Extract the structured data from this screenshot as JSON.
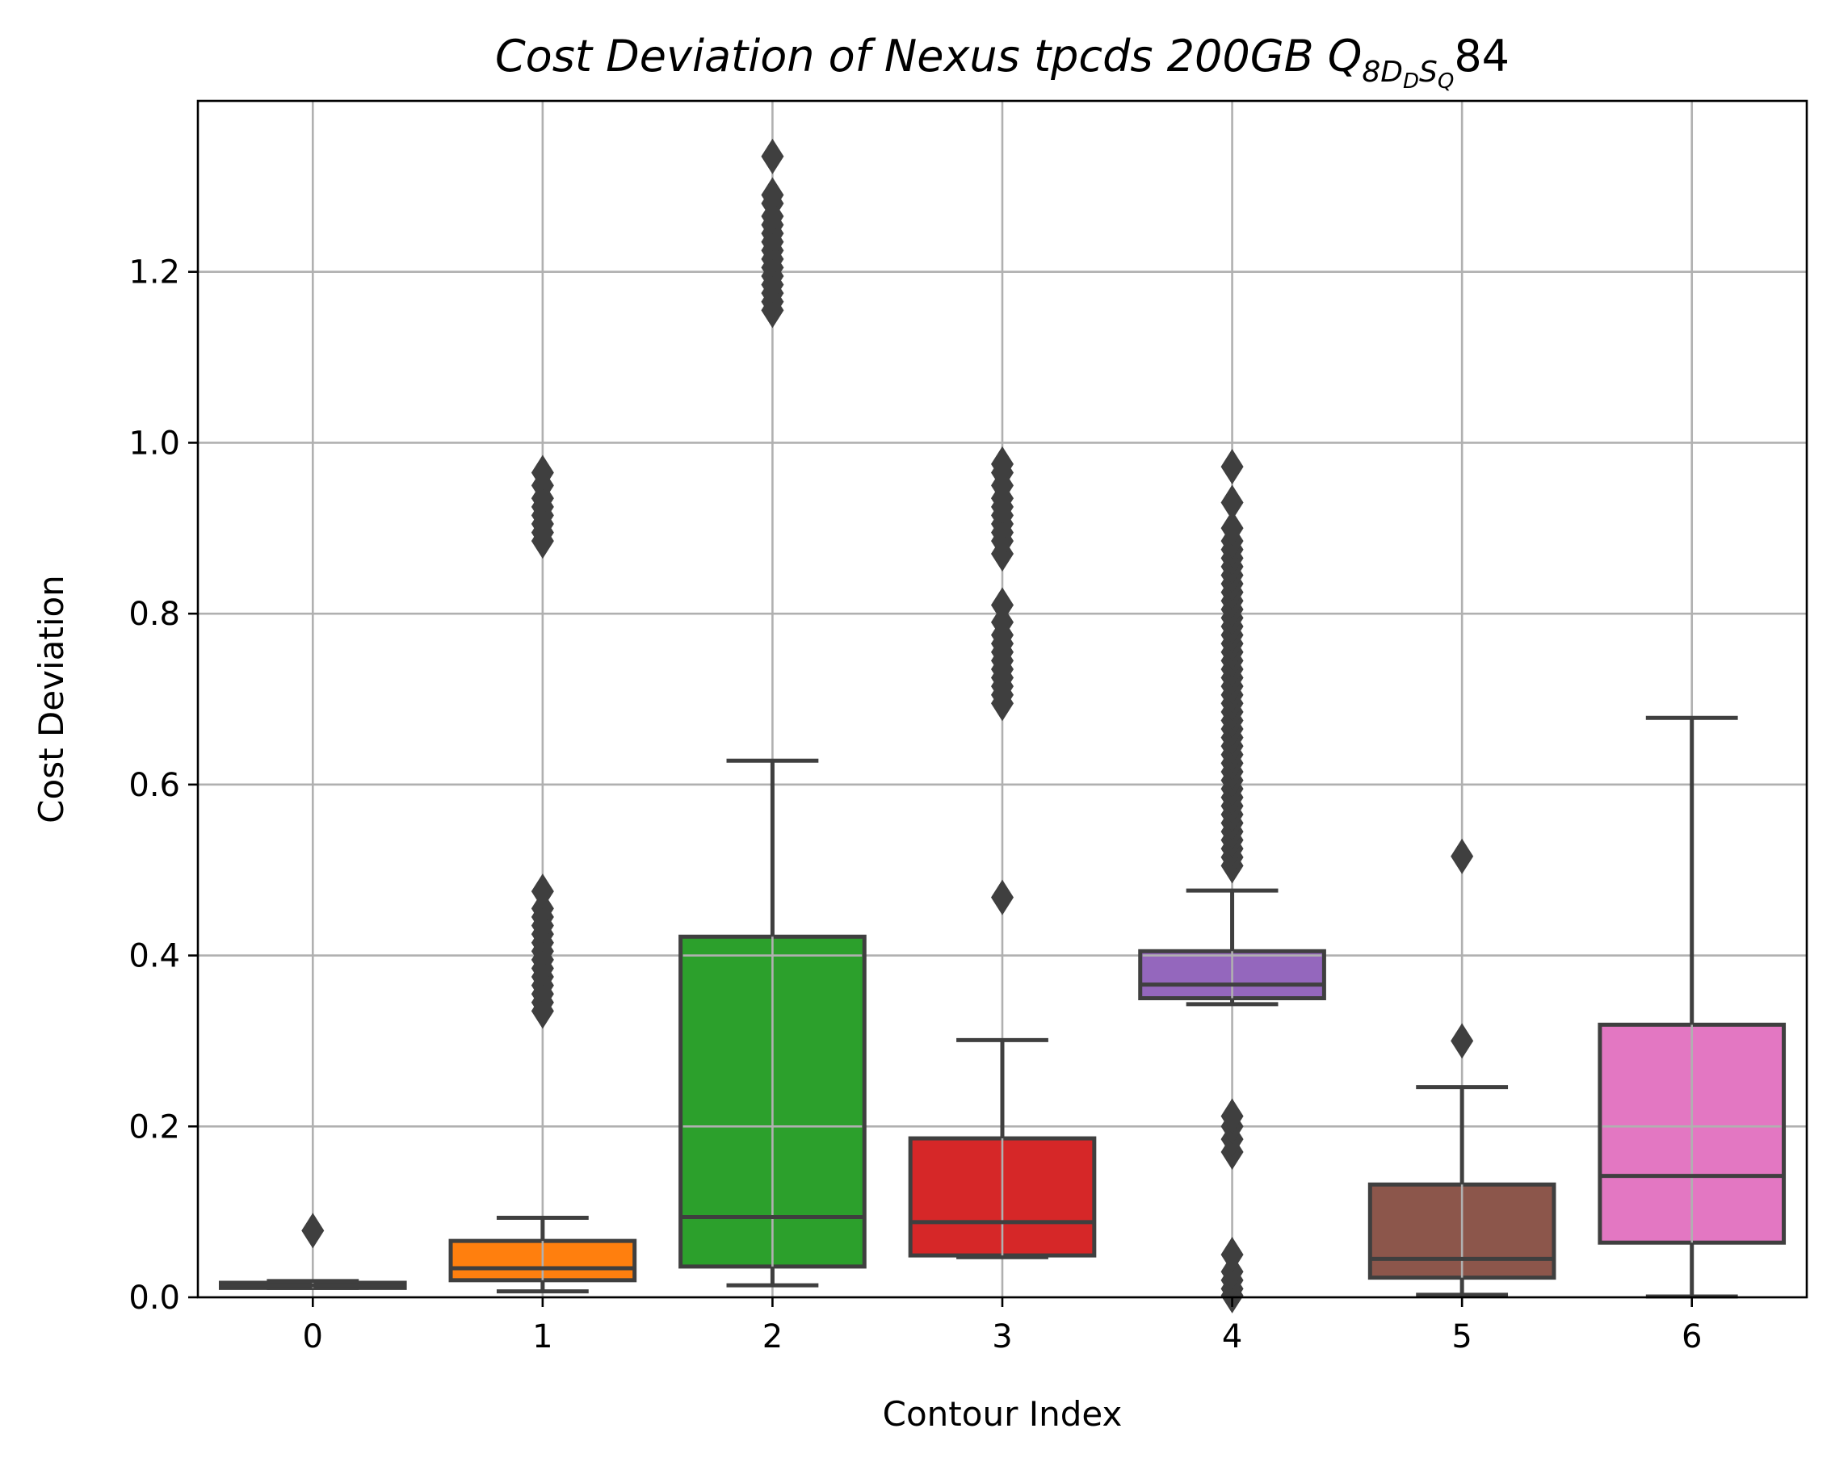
{
  "chart_data": {
    "type": "box",
    "title": {
      "main": "Cost Deviation of Nexus tpcds  200GB  ",
      "q": "Q",
      "sub_8": "8",
      "sub_D": "D",
      "subsub_D": "D",
      "sub_S": "S",
      "subsub_Q": "Q",
      "suffix": "84"
    },
    "xlabel": "Contour Index",
    "ylabel": "Cost Deviation",
    "ylim": [
      0,
      1.4
    ],
    "y_ticks": [
      "0.0",
      "0.2",
      "0.4",
      "0.6",
      "0.8",
      "1.0",
      "1.2"
    ],
    "grid": true,
    "categories": [
      "0",
      "1",
      "2",
      "3",
      "4",
      "5",
      "6"
    ],
    "boxes": [
      {
        "category": "0",
        "color": "#1f77b4",
        "whislo": 0.011,
        "q1": 0.011,
        "med": 0.014,
        "q3": 0.017,
        "whishi": 0.019,
        "fliers": [
          0.078
        ]
      },
      {
        "category": "1",
        "color": "#ff7f0e",
        "whislo": 0.007,
        "q1": 0.02,
        "med": 0.034,
        "q3": 0.066,
        "whishi": 0.093,
        "fliers": [
          0.335,
          0.345,
          0.355,
          0.365,
          0.375,
          0.385,
          0.395,
          0.405,
          0.415,
          0.425,
          0.435,
          0.445,
          0.455,
          0.475,
          0.885,
          0.895,
          0.905,
          0.915,
          0.925,
          0.935,
          0.95,
          0.965
        ]
      },
      {
        "category": "2",
        "color": "#2ca02c",
        "whislo": 0.014,
        "q1": 0.036,
        "med": 0.094,
        "q3": 0.422,
        "whishi": 0.628,
        "fliers": [
          1.155,
          1.165,
          1.175,
          1.185,
          1.195,
          1.205,
          1.215,
          1.225,
          1.235,
          1.245,
          1.255,
          1.265,
          1.28,
          1.29,
          1.335
        ]
      },
      {
        "category": "3",
        "color": "#d62728",
        "whislo": 0.047,
        "q1": 0.049,
        "med": 0.088,
        "q3": 0.186,
        "whishi": 0.301,
        "fliers": [
          0.468,
          0.695,
          0.705,
          0.715,
          0.725,
          0.735,
          0.745,
          0.755,
          0.765,
          0.775,
          0.79,
          0.81,
          0.87,
          0.885,
          0.895,
          0.905,
          0.915,
          0.925,
          0.935,
          0.95,
          0.965,
          0.975
        ]
      },
      {
        "category": "4",
        "color": "#9467bd",
        "whislo": 0.343,
        "q1": 0.35,
        "med": 0.366,
        "q3": 0.405,
        "whishi": 0.476,
        "fliers": [
          0.002,
          0.01,
          0.02,
          0.03,
          0.05,
          0.17,
          0.185,
          0.2,
          0.212,
          0.505,
          0.515,
          0.525,
          0.535,
          0.545,
          0.555,
          0.565,
          0.575,
          0.585,
          0.595,
          0.605,
          0.615,
          0.625,
          0.635,
          0.645,
          0.655,
          0.665,
          0.675,
          0.685,
          0.695,
          0.705,
          0.715,
          0.725,
          0.735,
          0.745,
          0.755,
          0.765,
          0.775,
          0.785,
          0.795,
          0.805,
          0.815,
          0.825,
          0.835,
          0.845,
          0.855,
          0.865,
          0.875,
          0.885,
          0.9,
          0.93,
          0.972
        ]
      },
      {
        "category": "5",
        "color": "#8c564b",
        "whislo": 0.003,
        "q1": 0.023,
        "med": 0.045,
        "q3": 0.132,
        "whishi": 0.246,
        "fliers": [
          0.3,
          0.516
        ]
      },
      {
        "category": "6",
        "color": "#e377c2",
        "whislo": 0.001,
        "q1": 0.064,
        "med": 0.142,
        "q3": 0.319,
        "whishi": 0.678,
        "fliers": []
      }
    ]
  }
}
